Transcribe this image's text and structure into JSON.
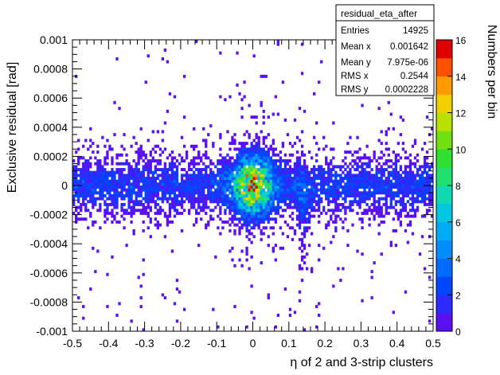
{
  "chart_data": {
    "type": "heatmap",
    "title": "",
    "xlabel": "η of 2 and 3-strip clusters",
    "ylabel": "Exclusive residual [rad]",
    "zlabel": "Numbers per bin",
    "xlim": [
      -0.5,
      0.5
    ],
    "ylim": [
      -0.001,
      0.001
    ],
    "zlim": [
      0,
      16
    ],
    "x_ticks": [
      "-0.5",
      "-0.4",
      "-0.3",
      "-0.2",
      "-0.1",
      "0",
      "0.1",
      "0.2",
      "0.3",
      "0.4",
      "0.5"
    ],
    "y_ticks": [
      "-0.001",
      "-0.0008",
      "-0.0006",
      "-0.0004",
      "-0.0002",
      "0",
      "0.0002",
      "0.0004",
      "0.0006",
      "0.0008",
      "0.001"
    ],
    "z_ticks": [
      "0",
      "2",
      "4",
      "6",
      "8",
      "10",
      "12",
      "14",
      "16"
    ],
    "grid": false,
    "features": [
      {
        "description": "main band",
        "y_range": [
          -0.0003,
          0.0003
        ],
        "x_range": [
          -0.5,
          0.5
        ]
      },
      {
        "description": "central peak",
        "x": 0.0,
        "y": 0.0,
        "max_count": 16
      },
      {
        "description": "secondary stripe",
        "x": 0.14,
        "y_range": [
          -0.0005,
          0.0003
        ]
      }
    ]
  },
  "stats": {
    "name": "residual_eta_after",
    "rows": [
      {
        "label": "Entries",
        "value": "14925"
      },
      {
        "label": "Mean x",
        "value": "0.001642"
      },
      {
        "label": "Mean y",
        "value": "7.975e-06"
      },
      {
        "label": "RMS x",
        "value": "0.2544"
      },
      {
        "label": "RMS y",
        "value": "0.0002228"
      }
    ]
  },
  "colors": {
    "palette": [
      "#8a00e0",
      "#5a10f0",
      "#2b2bff",
      "#0046ff",
      "#006cff",
      "#008dff",
      "#00adf5",
      "#00c8e0",
      "#10d8b0",
      "#20e070",
      "#30e030",
      "#70e010",
      "#b8e000",
      "#f0d000",
      "#ff9a00",
      "#ff5000",
      "#e00000"
    ]
  }
}
